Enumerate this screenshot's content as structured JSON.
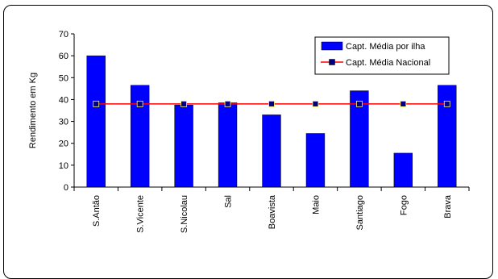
{
  "chart_data": {
    "type": "bar",
    "categories": [
      "S.Antão",
      "S.Vicente",
      "S.Nicolau",
      "Sal",
      "Boavista",
      "Maio",
      "Santiago",
      "Fogo",
      "Brava"
    ],
    "series": [
      {
        "name": "Capt. Média por ilha",
        "type": "bar",
        "color": "#0000ff",
        "values": [
          60,
          46.5,
          37.5,
          38.5,
          33,
          24.5,
          44,
          15.5,
          46.5
        ]
      },
      {
        "name": "Capt. Média Nacional",
        "type": "line",
        "color": "#ff0000",
        "marker_color": "#000080",
        "values": [
          38,
          38,
          38,
          38,
          38,
          38,
          38,
          38,
          38
        ]
      }
    ],
    "title": "",
    "xlabel": "",
    "ylabel": "Rendimento em Kg",
    "ylim": [
      0,
      70
    ],
    "yticks": [
      0,
      10,
      20,
      30,
      40,
      50,
      60,
      70
    ],
    "grid": false,
    "legend_position": "top-right"
  }
}
